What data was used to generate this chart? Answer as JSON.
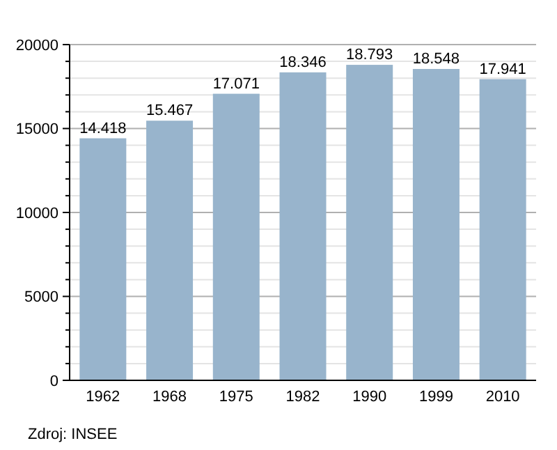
{
  "chart_data": {
    "type": "bar",
    "categories": [
      "1962",
      "1968",
      "1975",
      "1982",
      "1990",
      "1999",
      "2010"
    ],
    "values": [
      14418,
      15467,
      17071,
      18346,
      18793,
      18548,
      17941
    ],
    "value_labels": [
      "14.418",
      "15.467",
      "17.071",
      "18.346",
      "18.793",
      "18.548",
      "17.941"
    ],
    "color": "#98b4cc",
    "ylim": [
      0,
      20000
    ],
    "yticks": [
      0,
      {
        "value": 1000,
        "label": null
      },
      {
        "value": 2000,
        "label": null
      },
      {
        "value": 3000,
        "label": null
      },
      {
        "value": 4000,
        "label": null
      },
      5000,
      {
        "value": 6000,
        "label": null
      },
      {
        "value": 7000,
        "label": null
      },
      {
        "value": 8000,
        "label": null
      },
      {
        "value": 9000,
        "label": null
      },
      10000,
      {
        "value": 11000,
        "label": null
      },
      {
        "value": 12000,
        "label": null
      },
      {
        "value": 13000,
        "label": null
      },
      {
        "value": 14000,
        "label": null
      },
      15000,
      {
        "value": 16000,
        "label": null
      },
      {
        "value": 17000,
        "label": null
      },
      {
        "value": 18000,
        "label": null
      },
      {
        "value": 19000,
        "label": null
      },
      20000
    ],
    "grid": true,
    "annotations": [
      "Zdroj: INSEE"
    ]
  }
}
